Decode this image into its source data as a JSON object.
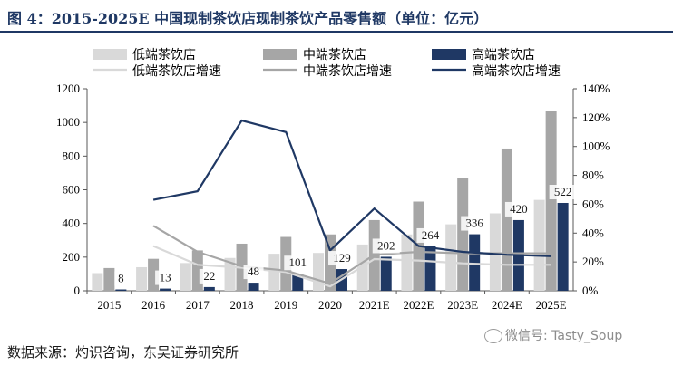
{
  "title": "图 4：2015-2025E 中国现制茶饮店现制茶饮产品零售额（单位：亿元）",
  "source": "数据来源：灼识咨询，东吴证券研究所",
  "watermark": "微信号: Tasty_Soup",
  "chart_data": {
    "type": "bar",
    "categories": [
      "2015",
      "2016",
      "2017",
      "2018",
      "2019",
      "2020",
      "2021E",
      "2022E",
      "2023E",
      "2024E",
      "2025E"
    ],
    "series": [
      {
        "name": "低端茶饮店",
        "kind": "bar",
        "axis": "left",
        "color": "#d9d9d9",
        "values": [
          105,
          140,
          165,
          195,
          220,
          225,
          275,
          335,
          395,
          460,
          540
        ]
      },
      {
        "name": "中端茶饮店",
        "kind": "bar",
        "axis": "left",
        "color": "#a6a6a6",
        "values": [
          135,
          190,
          240,
          280,
          320,
          335,
          420,
          530,
          670,
          845,
          1070
        ]
      },
      {
        "name": "高端茶饮店",
        "kind": "bar",
        "axis": "left",
        "color": "#1f3864",
        "values": [
          8,
          13,
          22,
          48,
          101,
          129,
          202,
          264,
          336,
          420,
          522
        ],
        "labels": [
          "8",
          "13",
          "22",
          "48",
          "101",
          "129",
          "202",
          "264",
          "336",
          "420",
          "522"
        ]
      },
      {
        "name": "低端茶饮店增速",
        "kind": "line",
        "axis": "right",
        "color": "#d9d9d9",
        "values": [
          null,
          31,
          18,
          16,
          13,
          3,
          22,
          21,
          19,
          18,
          18
        ]
      },
      {
        "name": "中端茶饮店增速",
        "kind": "line",
        "axis": "right",
        "color": "#a6a6a6",
        "values": [
          null,
          45,
          27,
          17,
          14,
          5,
          25,
          27,
          26,
          26,
          26
        ]
      },
      {
        "name": "高端茶饮店增速",
        "kind": "line",
        "axis": "right",
        "color": "#1f3864",
        "values": [
          null,
          63,
          69,
          118,
          110,
          28,
          57,
          31,
          27,
          25,
          24
        ]
      }
    ],
    "left_axis": {
      "min": 0,
      "max": 1200,
      "ticks": [
        "0",
        "200",
        "400",
        "600",
        "800",
        "1000",
        "1200"
      ]
    },
    "right_axis": {
      "min": 0,
      "max": 140,
      "ticks": [
        "0%",
        "20%",
        "40%",
        "60%",
        "80%",
        "100%",
        "120%",
        "140%"
      ]
    },
    "legend_position": "top",
    "grid": false
  }
}
